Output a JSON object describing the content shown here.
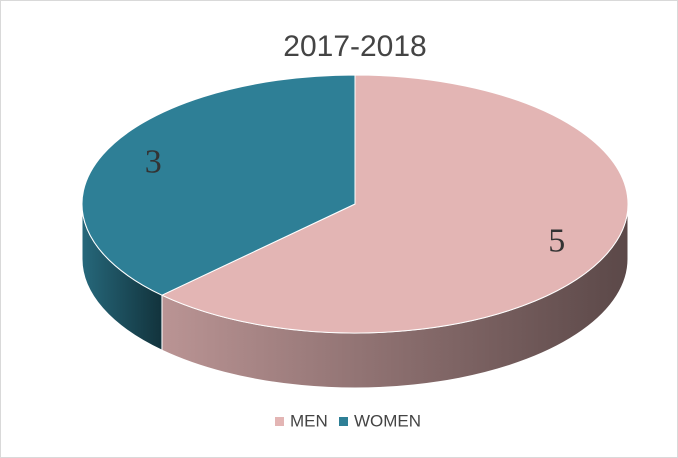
{
  "chart_data": {
    "type": "pie3d",
    "title": "2017-2018",
    "categories": [
      "MEN",
      "WOMEN"
    ],
    "values": [
      5,
      3
    ],
    "colors": [
      "#e3b5b4",
      "#2e7f96"
    ],
    "legend": "bottom"
  }
}
